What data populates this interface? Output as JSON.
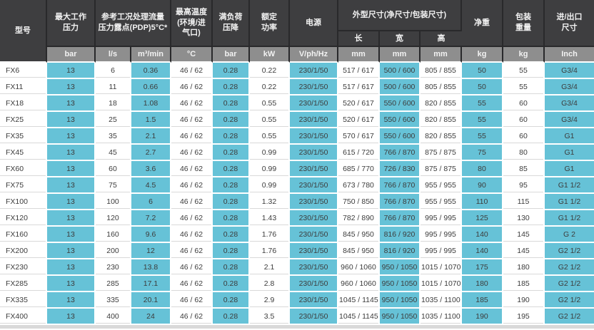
{
  "chart_data": {
    "type": "table",
    "title": "",
    "header": {
      "model": "型号",
      "max_working_pressure": "最大工作\n压力",
      "flow_group": "参考工况处理流量\n压力露点(PDP)5°C*",
      "max_temperature": "最高温度\n(环境/进\n气口)",
      "full_load_pressure_drop": "满负荷\n压降",
      "rated_power": "额定\n功率",
      "power_supply": "电源",
      "dimensions_group": "外型尺寸(净尺寸/包装尺寸)",
      "dim_length": "长",
      "dim_width": "宽",
      "dim_height": "高",
      "net_weight": "净重",
      "packing_weight": "包装\n重量",
      "inlet_outlet_size": "进/出口\n尺寸"
    },
    "units": [
      "bar",
      "l/s",
      "m³/min",
      "°C",
      "bar",
      "kW",
      "V/ph/Hz",
      "mm",
      "mm",
      "mm",
      "kg",
      "kg",
      "Inch"
    ],
    "rows": [
      [
        "FX6",
        "13",
        "6",
        "0.36",
        "46 / 62",
        "0.28",
        "0.22",
        "230/1/50",
        "517 / 617",
        "500 / 600",
        "805 / 855",
        "50",
        "55",
        "G3/4"
      ],
      [
        "FX11",
        "13",
        "11",
        "0.66",
        "46 / 62",
        "0.28",
        "0.22",
        "230/1/50",
        "517 / 617",
        "500 / 600",
        "805 / 855",
        "50",
        "55",
        "G3/4"
      ],
      [
        "FX18",
        "13",
        "18",
        "1.08",
        "46 / 62",
        "0.28",
        "0.55",
        "230/1/50",
        "520 / 617",
        "550 / 600",
        "820 / 855",
        "55",
        "60",
        "G3/4"
      ],
      [
        "FX25",
        "13",
        "25",
        "1.5",
        "46 / 62",
        "0.28",
        "0.55",
        "230/1/50",
        "520 / 617",
        "550 / 600",
        "820 / 855",
        "55",
        "60",
        "G3/4"
      ],
      [
        "FX35",
        "13",
        "35",
        "2.1",
        "46 / 62",
        "0.28",
        "0.55",
        "230/1/50",
        "570 / 617",
        "550 / 600",
        "820 / 855",
        "55",
        "60",
        "G1"
      ],
      [
        "FX45",
        "13",
        "45",
        "2.7",
        "46 / 62",
        "0.28",
        "0.99",
        "230/1/50",
        "615 / 720",
        "766 / 870",
        "875 / 875",
        "75",
        "80",
        "G1"
      ],
      [
        "FX60",
        "13",
        "60",
        "3.6",
        "46 / 62",
        "0.28",
        "0.99",
        "230/1/50",
        "685 / 770",
        "726 / 830",
        "875 / 875",
        "80",
        "85",
        "G1"
      ],
      [
        "FX75",
        "13",
        "75",
        "4.5",
        "46 / 62",
        "0.28",
        "0.99",
        "230/1/50",
        "673 / 780",
        "766 / 870",
        "955 / 955",
        "90",
        "95",
        "G1 1/2"
      ],
      [
        "FX100",
        "13",
        "100",
        "6",
        "46 / 62",
        "0.28",
        "1.32",
        "230/1/50",
        "750 / 850",
        "766 / 870",
        "955 / 955",
        "110",
        "115",
        "G1 1/2"
      ],
      [
        "FX120",
        "13",
        "120",
        "7.2",
        "46 / 62",
        "0.28",
        "1.43",
        "230/1/50",
        "782 / 890",
        "766 / 870",
        "995 / 995",
        "125",
        "130",
        "G1 1/2"
      ],
      [
        "FX160",
        "13",
        "160",
        "9.6",
        "46 / 62",
        "0.28",
        "1.76",
        "230/1/50",
        "845 / 950",
        "816 / 920",
        "995 / 995",
        "140",
        "145",
        "G 2"
      ],
      [
        "FX200",
        "13",
        "200",
        "12",
        "46 / 62",
        "0.28",
        "1.76",
        "230/1/50",
        "845 / 950",
        "816 / 920",
        "995 / 995",
        "140",
        "145",
        "G2 1/2"
      ],
      [
        "FX230",
        "13",
        "230",
        "13.8",
        "46 / 62",
        "0.28",
        "2.1",
        "230/1/50",
        "960 / 1060",
        "950 / 1050",
        "1015 / 1070",
        "175",
        "180",
        "G2 1/2"
      ],
      [
        "FX285",
        "13",
        "285",
        "17.1",
        "46 / 62",
        "0.28",
        "2.8",
        "230/1/50",
        "960 / 1060",
        "950 / 1050",
        "1015 / 1070",
        "180",
        "185",
        "G2 1/2"
      ],
      [
        "FX335",
        "13",
        "335",
        "20.1",
        "46 / 62",
        "0.28",
        "2.9",
        "230/1/50",
        "1045 / 1145",
        "950 / 1050",
        "1035 / 1100",
        "185",
        "190",
        "G2 1/2"
      ],
      [
        "FX400",
        "13",
        "400",
        "24",
        "46 / 62",
        "0.28",
        "3.5",
        "230/1/50",
        "1045 / 1145",
        "950 / 1050",
        "1035 / 1100",
        "190",
        "195",
        "G2 1/2"
      ]
    ],
    "layout_hints": {
      "legend": "none",
      "grid": "cell-borders",
      "column_color_pattern": "columns alternate white/blue starting with white at column 0"
    }
  },
  "colors": {
    "header_dark": "#3e3e40",
    "unit_gray": "#8e8e8e",
    "cell_blue": "#66c2d7",
    "row_line": "#d9d9d9",
    "text_dark": "#3c3c3c"
  }
}
